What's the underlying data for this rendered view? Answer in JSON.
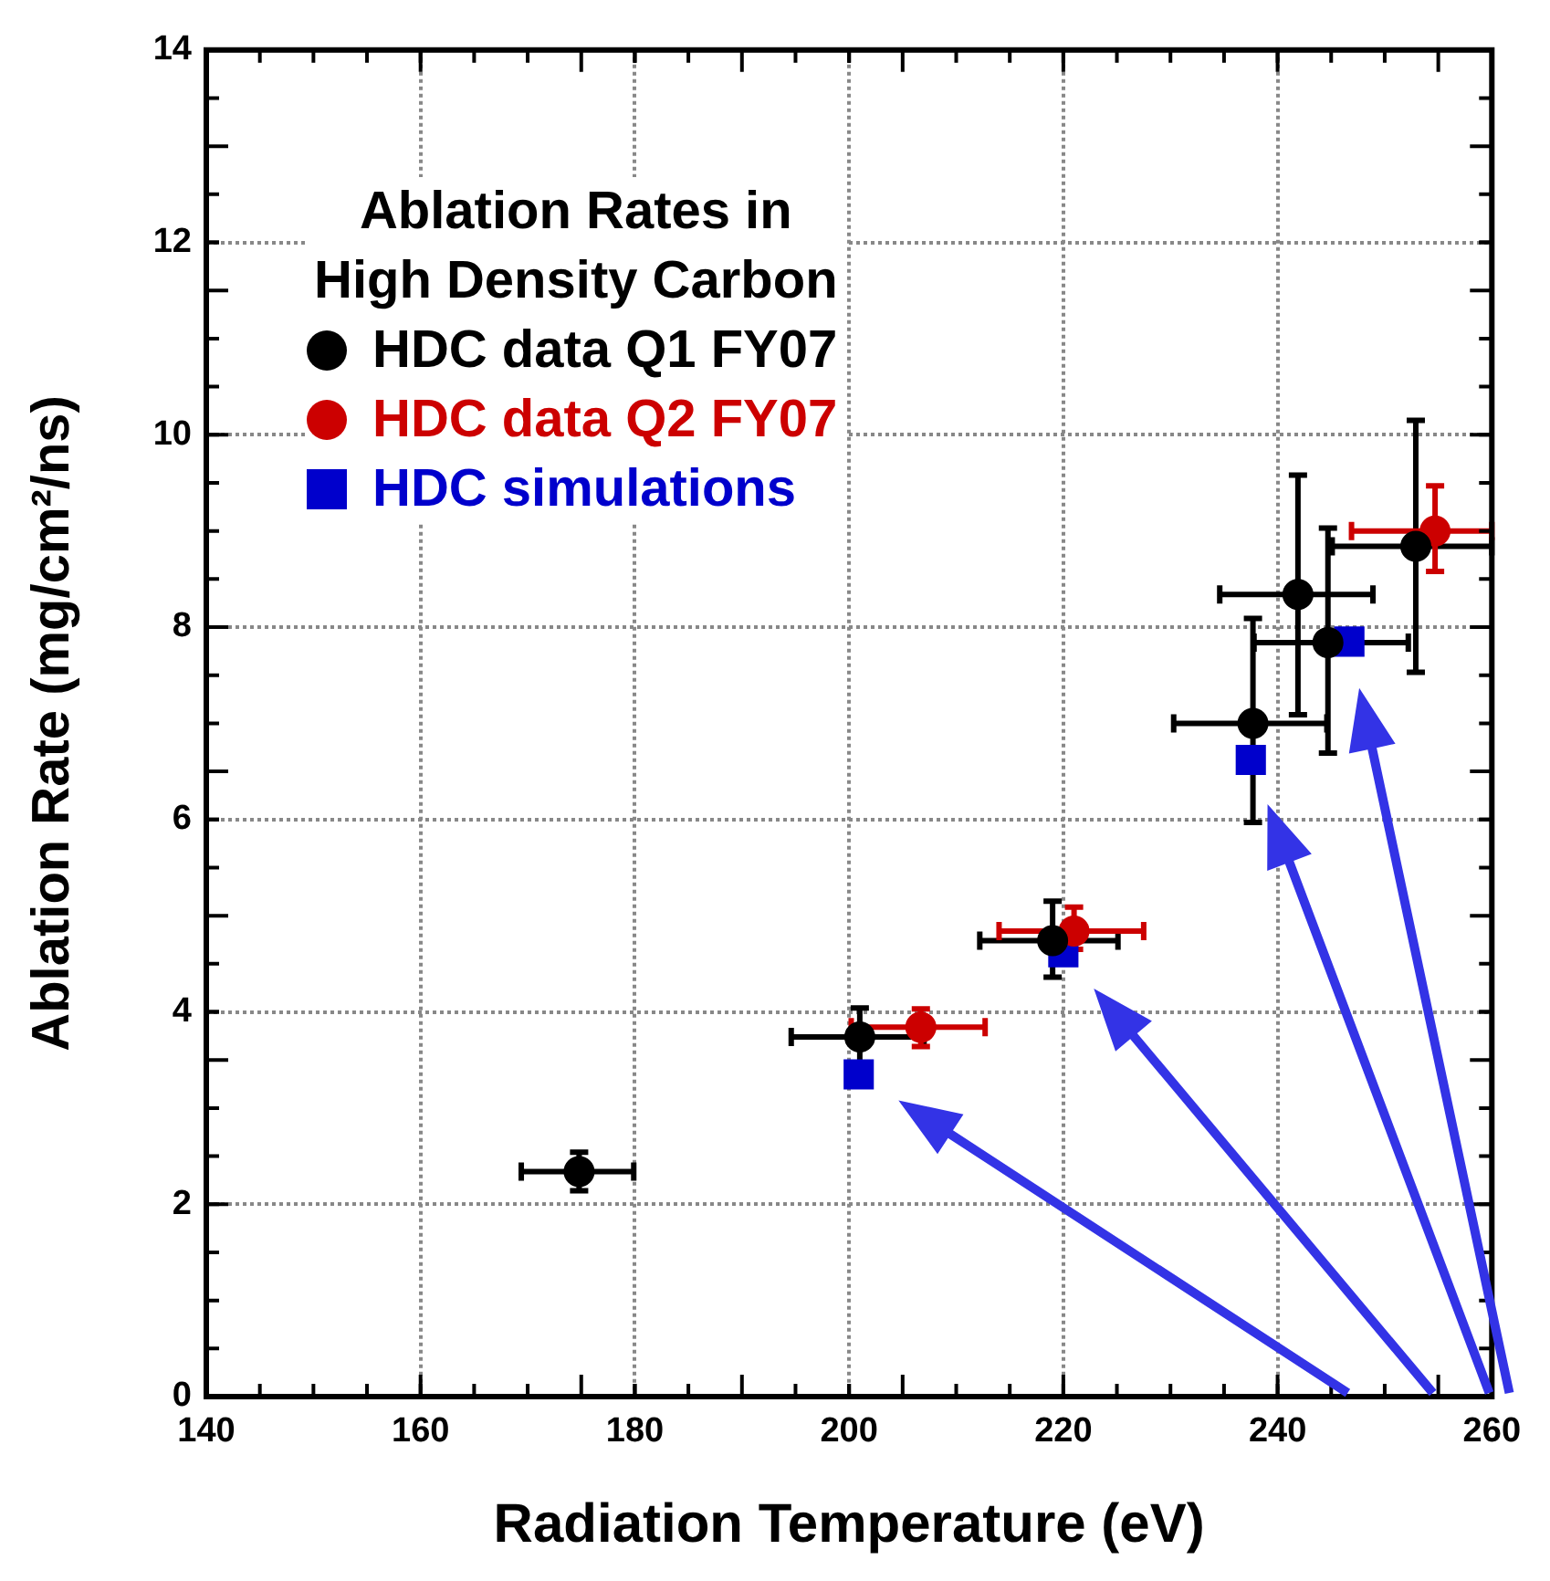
{
  "chart_data": {
    "type": "scatter",
    "xlabel": "Radiation Temperature (eV)",
    "ylabel": "Ablation Rate (mg/cm²/ns)",
    "legend_title": "Ablation Rates in\nHigh Density Carbon",
    "xlim": [
      140,
      260
    ],
    "xticks": [
      140,
      160,
      180,
      200,
      220,
      240,
      260
    ],
    "ylim": [
      0,
      14
    ],
    "yticks": [
      0,
      2,
      4,
      6,
      8,
      10,
      12,
      14
    ],
    "grid": true,
    "legend": "top left",
    "series": [
      {
        "name": "HDC data Q1 FY07",
        "color": "#000000",
        "marker": "circle",
        "x": [
          174.8,
          201.0,
          219.0,
          237.7,
          241.9,
          244.7,
          252.9
        ],
        "values": [
          2.34,
          3.74,
          4.74,
          7.0,
          8.34,
          7.84,
          8.84
        ],
        "errors": [
          [
            2.14,
            2.54
          ],
          [
            3.45,
            4.04
          ],
          [
            4.36,
            5.15
          ],
          [
            5.97,
            8.09
          ],
          [
            7.09,
            9.58
          ],
          [
            6.69,
            9.03
          ],
          [
            7.53,
            10.15
          ]
        ],
        "xerrors": [
          [
            169.4,
            179.9
          ],
          [
            194.6,
            207.0
          ],
          [
            212.2,
            225.1
          ],
          [
            230.3,
            244.6
          ],
          [
            234.6,
            248.9
          ],
          [
            237.8,
            252.2
          ],
          [
            245.1,
            260
          ]
        ]
      },
      {
        "name": "HDC data Q2 FY07",
        "color": "#cc0000",
        "marker": "circle",
        "x": [
          206.7,
          221.0,
          254.7
        ],
        "values": [
          3.84,
          4.84,
          9.0
        ],
        "errors": [
          [
            3.64,
            4.03
          ],
          [
            4.65,
            5.09
          ],
          [
            8.58,
            9.47
          ]
        ],
        "xerrors": [
          [
            200.2,
            212.7
          ],
          [
            214.0,
            227.5
          ],
          [
            246.9,
            260
          ]
        ]
      },
      {
        "name": "HDC simulations",
        "color": "#0000cc",
        "marker": "square",
        "x": [
          200.9,
          220.0,
          237.5,
          246.7
        ],
        "values": [
          3.35,
          4.62,
          6.62,
          7.85
        ]
      }
    ]
  }
}
